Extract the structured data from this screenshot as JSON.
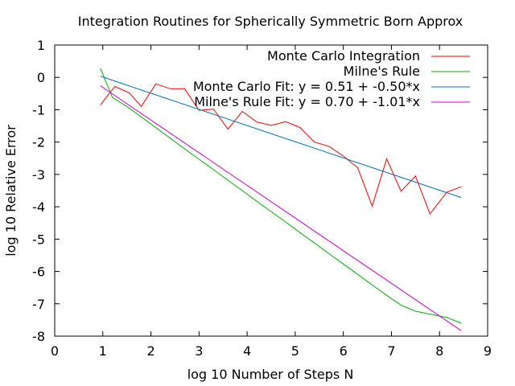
{
  "chart_data": {
    "type": "line",
    "title": "Integration Routines for Spherically Symmetric Born Approx",
    "xlabel": "log 10 Number of Steps N",
    "ylabel": "log 10 Relative Error",
    "xlim": [
      0,
      9
    ],
    "ylim": [
      -8,
      1
    ],
    "xticks": [
      0,
      1,
      2,
      3,
      4,
      5,
      6,
      7,
      8,
      9
    ],
    "yticks": [
      1,
      0,
      -1,
      -2,
      -3,
      -4,
      -5,
      -6,
      -7,
      -8
    ],
    "grid": false,
    "legend": "top-right",
    "series": [
      {
        "name": "Monte Carlo Integration",
        "color": "#ff0000",
        "points": [
          [
            0.95,
            -0.85
          ],
          [
            1.25,
            -0.28
          ],
          [
            1.55,
            -0.48
          ],
          [
            1.8,
            -0.9
          ],
          [
            2.1,
            -0.2
          ],
          [
            2.4,
            -0.35
          ],
          [
            2.7,
            -0.35
          ],
          [
            3.0,
            -1.02
          ],
          [
            3.3,
            -0.98
          ],
          [
            3.6,
            -1.6
          ],
          [
            3.9,
            -1.05
          ],
          [
            4.2,
            -1.38
          ],
          [
            4.5,
            -1.48
          ],
          [
            4.8,
            -1.37
          ],
          [
            5.1,
            -1.55
          ],
          [
            5.4,
            -2.0
          ],
          [
            5.7,
            -2.13
          ],
          [
            6.0,
            -2.43
          ],
          [
            6.3,
            -2.8
          ],
          [
            6.6,
            -3.98
          ],
          [
            6.9,
            -2.52
          ],
          [
            7.2,
            -3.52
          ],
          [
            7.5,
            -3.05
          ],
          [
            7.8,
            -4.22
          ],
          [
            8.15,
            -3.55
          ],
          [
            8.45,
            -3.38
          ]
        ]
      },
      {
        "name": "Milne's Rule",
        "color": "#00b000",
        "points": [
          [
            0.95,
            0.28
          ],
          [
            1.2,
            -0.62
          ],
          [
            1.5,
            -0.9
          ],
          [
            1.8,
            -1.22
          ],
          [
            2.1,
            -1.55
          ],
          [
            2.4,
            -1.88
          ],
          [
            2.7,
            -2.21
          ],
          [
            3.0,
            -2.53
          ],
          [
            3.3,
            -2.85
          ],
          [
            3.6,
            -3.18
          ],
          [
            3.9,
            -3.5
          ],
          [
            4.2,
            -3.83
          ],
          [
            4.5,
            -4.15
          ],
          [
            4.8,
            -4.47
          ],
          [
            5.1,
            -4.8
          ],
          [
            5.4,
            -5.12
          ],
          [
            5.7,
            -5.45
          ],
          [
            6.0,
            -5.77
          ],
          [
            6.3,
            -6.09
          ],
          [
            6.6,
            -6.42
          ],
          [
            6.9,
            -6.74
          ],
          [
            7.2,
            -7.04
          ],
          [
            7.5,
            -7.23
          ],
          [
            7.8,
            -7.32
          ],
          [
            8.15,
            -7.42
          ],
          [
            8.45,
            -7.6
          ]
        ]
      },
      {
        "name": "Monte Carlo Fit: y = 0.51 + -0.50*x",
        "color": "#0072bd",
        "fit": {
          "a": 0.51,
          "b": -0.5
        },
        "points": [
          [
            0.95,
            0.035
          ],
          [
            8.45,
            -3.715
          ]
        ]
      },
      {
        "name": "Milne's Rule Fit: y = 0.70 + -1.01*x",
        "color": "#d000d0",
        "fit": {
          "a": 0.7,
          "b": -1.01
        },
        "points": [
          [
            0.95,
            -0.26
          ],
          [
            8.45,
            -7.83
          ]
        ]
      }
    ]
  }
}
